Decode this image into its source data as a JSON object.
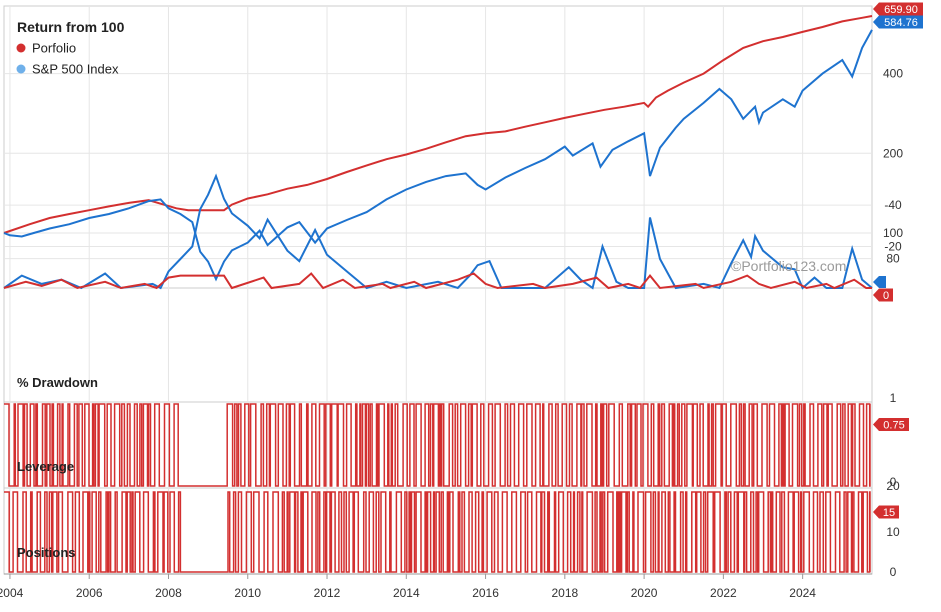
{
  "colors": {
    "portfolio": "#d32f2f",
    "sp500": "#1e73cf",
    "grid": "#e6e6e6",
    "axis": "#999999",
    "text": "#222222"
  },
  "watermark": "©Portfolio123.com",
  "chart_data": [
    {
      "type": "line",
      "title": "Return from 100",
      "y_scale": "log",
      "yticks": [
        80,
        100,
        200,
        400
      ],
      "x_labels": [
        "2004",
        "2006",
        "2008",
        "2010",
        "2012",
        "2014",
        "2016",
        "2018",
        "2020",
        "2022",
        "2024"
      ],
      "x_range": [
        2003.85,
        2025.75
      ],
      "grid": true,
      "legend_position": "top-left",
      "series": [
        {
          "name": "Porfolio",
          "color": "#d32f2f",
          "last_value": "659.90",
          "points": [
            [
              2003.85,
              100
            ],
            [
              2004.5,
              108
            ],
            [
              2005.0,
              114
            ],
            [
              2005.5,
              118
            ],
            [
              2006.0,
              122
            ],
            [
              2006.5,
              126
            ],
            [
              2007.0,
              130
            ],
            [
              2007.5,
              133
            ],
            [
              2007.8,
              129
            ],
            [
              2008.2,
              124
            ],
            [
              2008.5,
              122
            ],
            [
              2009.4,
              122
            ],
            [
              2009.6,
              128
            ],
            [
              2010.0,
              135
            ],
            [
              2010.5,
              140
            ],
            [
              2011.0,
              147
            ],
            [
              2011.5,
              152
            ],
            [
              2012.0,
              160
            ],
            [
              2012.5,
              170
            ],
            [
              2013.0,
              180
            ],
            [
              2013.5,
              190
            ],
            [
              2014.0,
              198
            ],
            [
              2014.5,
              208
            ],
            [
              2015.0,
              220
            ],
            [
              2015.5,
              232
            ],
            [
              2016.0,
              238
            ],
            [
              2016.5,
              242
            ],
            [
              2017.0,
              252
            ],
            [
              2017.5,
              262
            ],
            [
              2018.0,
              272
            ],
            [
              2018.5,
              282
            ],
            [
              2019.0,
              292
            ],
            [
              2019.5,
              300
            ],
            [
              2020.0,
              310
            ],
            [
              2020.1,
              300
            ],
            [
              2020.3,
              325
            ],
            [
              2020.6,
              345
            ],
            [
              2021.0,
              370
            ],
            [
              2021.5,
              400
            ],
            [
              2022.0,
              450
            ],
            [
              2022.5,
              500
            ],
            [
              2023.0,
              530
            ],
            [
              2023.5,
              550
            ],
            [
              2024.0,
              575
            ],
            [
              2024.5,
              600
            ],
            [
              2025.0,
              630
            ],
            [
              2025.5,
              650
            ],
            [
              2025.75,
              659.9
            ]
          ]
        },
        {
          "name": "S&P 500 Index",
          "color": "#1e73cf",
          "last_value": "584.76",
          "points": [
            [
              2003.85,
              100
            ],
            [
              2004.0,
              98
            ],
            [
              2004.3,
              97
            ],
            [
              2004.6,
              100
            ],
            [
              2005.0,
              104
            ],
            [
              2005.5,
              108
            ],
            [
              2006.0,
              114
            ],
            [
              2006.5,
              118
            ],
            [
              2007.0,
              124
            ],
            [
              2007.5,
              132
            ],
            [
              2007.8,
              134
            ],
            [
              2008.0,
              124
            ],
            [
              2008.3,
              118
            ],
            [
              2008.6,
              110
            ],
            [
              2008.8,
              85
            ],
            [
              2009.0,
              78
            ],
            [
              2009.2,
              67
            ],
            [
              2009.4,
              78
            ],
            [
              2009.6,
              86
            ],
            [
              2010.0,
              92
            ],
            [
              2010.3,
              102
            ],
            [
              2010.5,
              90
            ],
            [
              2011.0,
              105
            ],
            [
              2011.3,
              110
            ],
            [
              2011.7,
              92
            ],
            [
              2012.0,
              104
            ],
            [
              2012.5,
              112
            ],
            [
              2013.0,
              120
            ],
            [
              2013.5,
              134
            ],
            [
              2014.0,
              146
            ],
            [
              2014.5,
              156
            ],
            [
              2015.0,
              164
            ],
            [
              2015.5,
              168
            ],
            [
              2015.8,
              152
            ],
            [
              2016.0,
              146
            ],
            [
              2016.5,
              162
            ],
            [
              2017.0,
              176
            ],
            [
              2017.5,
              190
            ],
            [
              2018.0,
              212
            ],
            [
              2018.2,
              196
            ],
            [
              2018.7,
              218
            ],
            [
              2018.9,
              178
            ],
            [
              2019.2,
              206
            ],
            [
              2019.6,
              222
            ],
            [
              2020.0,
              238
            ],
            [
              2020.15,
              164
            ],
            [
              2020.4,
              210
            ],
            [
              2020.8,
              250
            ],
            [
              2021.0,
              270
            ],
            [
              2021.5,
              310
            ],
            [
              2021.9,
              350
            ],
            [
              2022.2,
              320
            ],
            [
              2022.5,
              270
            ],
            [
              2022.8,
              300
            ],
            [
              2022.9,
              262
            ],
            [
              2023.0,
              285
            ],
            [
              2023.5,
              320
            ],
            [
              2023.8,
              300
            ],
            [
              2024.0,
              345
            ],
            [
              2024.5,
              400
            ],
            [
              2025.0,
              450
            ],
            [
              2025.25,
              390
            ],
            [
              2025.5,
              500
            ],
            [
              2025.75,
              584.76
            ]
          ]
        }
      ]
    },
    {
      "type": "line",
      "title": "% Drawdown",
      "yticks": [
        0,
        -20,
        -40
      ],
      "series": [
        {
          "name": "Porfolio",
          "color": "#d32f2f",
          "last_value": "0",
          "points": [
            [
              2003.85,
              0
            ],
            [
              2004.4,
              -3
            ],
            [
              2004.8,
              -1
            ],
            [
              2005.3,
              -4
            ],
            [
              2005.7,
              0
            ],
            [
              2006.4,
              -3
            ],
            [
              2006.8,
              0
            ],
            [
              2007.4,
              -2
            ],
            [
              2007.7,
              0
            ],
            [
              2008.0,
              -5
            ],
            [
              2008.3,
              -6
            ],
            [
              2009.4,
              -6
            ],
            [
              2009.6,
              0
            ],
            [
              2010.4,
              -5
            ],
            [
              2010.6,
              0
            ],
            [
              2011.3,
              -2
            ],
            [
              2011.6,
              -7
            ],
            [
              2011.9,
              0
            ],
            [
              2012.4,
              -4
            ],
            [
              2012.7,
              0
            ],
            [
              2013.4,
              -2
            ],
            [
              2013.6,
              0
            ],
            [
              2014.2,
              -3
            ],
            [
              2014.5,
              0
            ],
            [
              2015.3,
              -4
            ],
            [
              2015.7,
              -7
            ],
            [
              2016.0,
              -2
            ],
            [
              2016.3,
              0
            ],
            [
              2017.2,
              -2
            ],
            [
              2017.5,
              0
            ],
            [
              2018.2,
              -2
            ],
            [
              2018.8,
              -5
            ],
            [
              2019.1,
              0
            ],
            [
              2019.6,
              -2
            ],
            [
              2019.9,
              0
            ],
            [
              2020.15,
              -6
            ],
            [
              2020.4,
              0
            ],
            [
              2021.3,
              -2
            ],
            [
              2021.5,
              0
            ],
            [
              2022.2,
              -3
            ],
            [
              2022.6,
              -6
            ],
            [
              2022.9,
              -2
            ],
            [
              2023.2,
              0
            ],
            [
              2023.8,
              -3
            ],
            [
              2024.1,
              0
            ],
            [
              2024.6,
              -2
            ],
            [
              2024.8,
              0
            ],
            [
              2025.3,
              -4
            ],
            [
              2025.6,
              0
            ],
            [
              2025.75,
              0
            ]
          ]
        },
        {
          "name": "S&P 500 Index",
          "color": "#1e73cf",
          "last_value": "",
          "points": [
            [
              2003.85,
              0
            ],
            [
              2004.3,
              -6
            ],
            [
              2004.8,
              -2
            ],
            [
              2005.3,
              -4
            ],
            [
              2005.8,
              0
            ],
            [
              2006.4,
              -7
            ],
            [
              2006.8,
              0
            ],
            [
              2007.6,
              -2
            ],
            [
              2007.8,
              0
            ],
            [
              2008.0,
              -8
            ],
            [
              2008.3,
              -14
            ],
            [
              2008.6,
              -20
            ],
            [
              2008.8,
              -38
            ],
            [
              2009.0,
              -45
            ],
            [
              2009.2,
              -54
            ],
            [
              2009.4,
              -43
            ],
            [
              2009.6,
              -36
            ],
            [
              2010.0,
              -30
            ],
            [
              2010.3,
              -24
            ],
            [
              2010.5,
              -33
            ],
            [
              2011.0,
              -18
            ],
            [
              2011.3,
              -13
            ],
            [
              2011.7,
              -28
            ],
            [
              2012.0,
              -16
            ],
            [
              2012.5,
              -8
            ],
            [
              2013.0,
              0
            ],
            [
              2013.5,
              -3
            ],
            [
              2014.0,
              0
            ],
            [
              2014.8,
              -3
            ],
            [
              2015.3,
              0
            ],
            [
              2015.6,
              -6
            ],
            [
              2015.8,
              -11
            ],
            [
              2016.1,
              -13
            ],
            [
              2016.4,
              0
            ],
            [
              2017.5,
              0
            ],
            [
              2018.1,
              -10
            ],
            [
              2018.4,
              -4
            ],
            [
              2018.7,
              0
            ],
            [
              2018.95,
              -20
            ],
            [
              2019.3,
              -3
            ],
            [
              2019.6,
              0
            ],
            [
              2020.0,
              0
            ],
            [
              2020.15,
              -34
            ],
            [
              2020.4,
              -14
            ],
            [
              2020.8,
              0
            ],
            [
              2021.5,
              -2
            ],
            [
              2021.9,
              0
            ],
            [
              2022.2,
              -12
            ],
            [
              2022.5,
              -23
            ],
            [
              2022.7,
              -15
            ],
            [
              2022.8,
              -25
            ],
            [
              2023.0,
              -18
            ],
            [
              2023.5,
              -10
            ],
            [
              2023.8,
              -9
            ],
            [
              2024.0,
              0
            ],
            [
              2024.3,
              -5
            ],
            [
              2024.6,
              0
            ],
            [
              2025.0,
              0
            ],
            [
              2025.25,
              -19
            ],
            [
              2025.5,
              -4
            ],
            [
              2025.75,
              0
            ]
          ]
        }
      ]
    },
    {
      "type": "line",
      "title": "Leverage",
      "yticks": [
        1,
        0
      ],
      "series": [
        {
          "name": "Porfolio",
          "color": "#d32f2f",
          "last_value": "0.75",
          "switch_range": [
            0,
            1
          ],
          "flat_gap": [
            2008.3,
            2009.4
          ]
        }
      ]
    },
    {
      "type": "line",
      "title": "Positions",
      "yticks": [
        20,
        10,
        0
      ],
      "series": [
        {
          "name": "Porfolio",
          "color": "#d32f2f",
          "last_value": "15",
          "switch_range": [
            0,
            20
          ],
          "flat_gap": [
            2008.3,
            2009.4
          ]
        }
      ]
    }
  ]
}
